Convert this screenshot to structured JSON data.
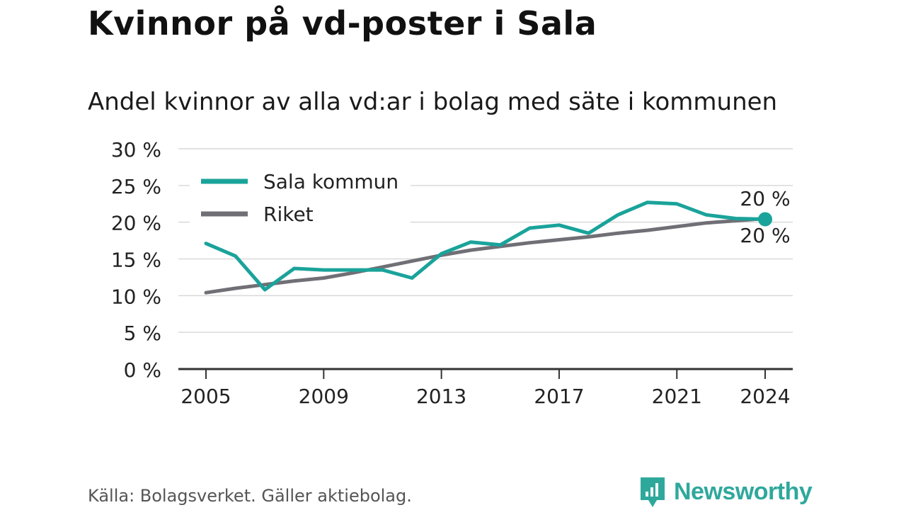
{
  "title": "Kvinnor på vd-poster i Sala",
  "subtitle": "Andel kvinnor av alla vd:ar i bolag med säte i kommunen",
  "source": "Källa: Bolagsverket. Gäller aktiebolag.",
  "brand": "Newsworthy",
  "chart_data": {
    "type": "line",
    "x": [
      2005,
      2006,
      2007,
      2008,
      2009,
      2010,
      2011,
      2012,
      2013,
      2014,
      2015,
      2016,
      2017,
      2018,
      2019,
      2020,
      2021,
      2022,
      2023,
      2024
    ],
    "xticks": [
      2005,
      2009,
      2013,
      2017,
      2021,
      2024
    ],
    "xtick_labels": [
      "2005",
      "2009",
      "2013",
      "2017",
      "2021",
      "2024"
    ],
    "ylim": [
      0,
      30
    ],
    "yticks": [
      0,
      5,
      10,
      15,
      20,
      25,
      30
    ],
    "ytick_labels": [
      "0 %",
      "5 %",
      "10 %",
      "15 %",
      "20 %",
      "25 %",
      "30 %"
    ],
    "grid": true,
    "legend_position": "top-left",
    "series": [
      {
        "name": "Sala kommun",
        "color": "#1aa39a",
        "values": [
          17.1,
          15.4,
          10.8,
          13.7,
          13.5,
          13.5,
          13.5,
          12.4,
          15.7,
          17.3,
          16.9,
          19.2,
          19.6,
          18.5,
          21.0,
          22.7,
          22.5,
          21.0,
          20.5,
          20.4
        ],
        "end_label": "20 %"
      },
      {
        "name": "Riket",
        "color": "#716f76",
        "values": [
          10.4,
          11.0,
          11.5,
          12.0,
          12.4,
          13.1,
          13.9,
          14.7,
          15.5,
          16.2,
          16.7,
          17.2,
          17.6,
          18.0,
          18.5,
          18.9,
          19.4,
          19.9,
          20.2,
          20.5
        ],
        "end_label": "20 %"
      }
    ]
  }
}
